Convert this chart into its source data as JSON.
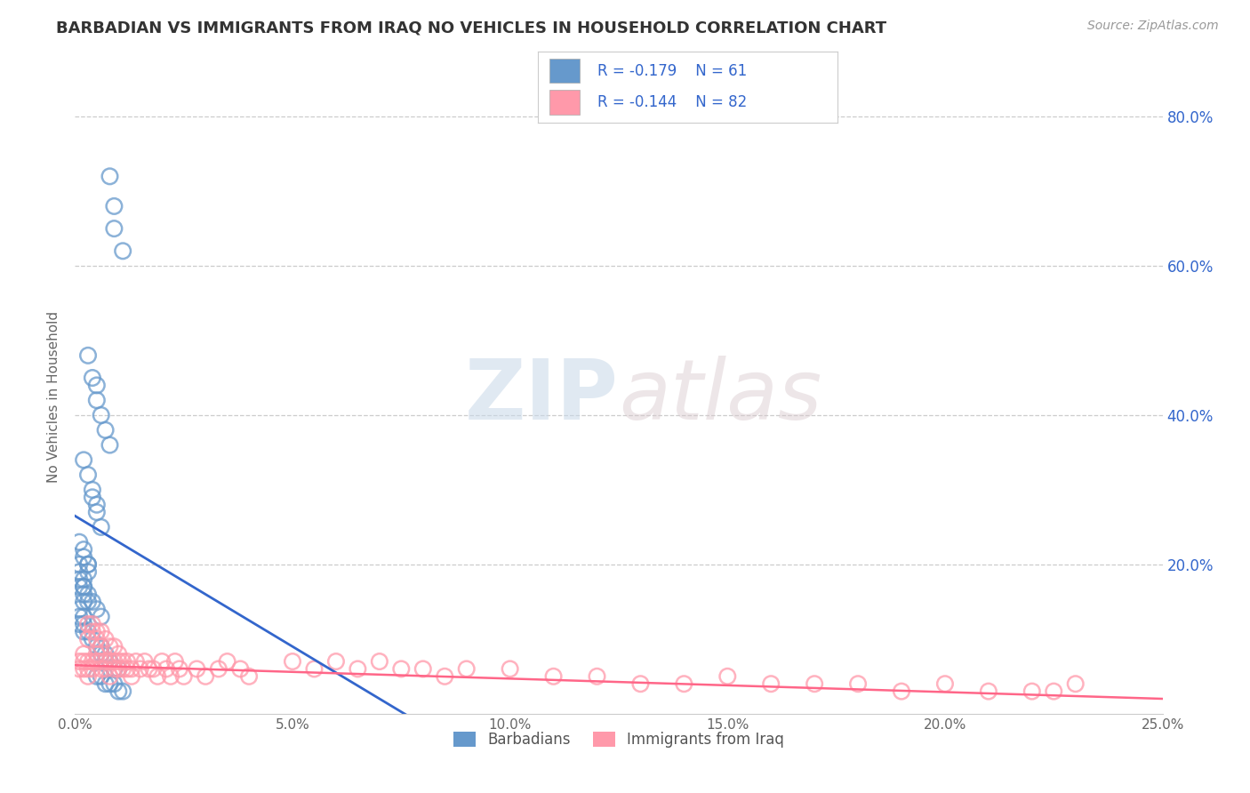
{
  "title": "BARBADIAN VS IMMIGRANTS FROM IRAQ NO VEHICLES IN HOUSEHOLD CORRELATION CHART",
  "source": "Source: ZipAtlas.com",
  "ylabel": "No Vehicles in Household",
  "xlim": [
    0.0,
    0.25
  ],
  "ylim": [
    0.0,
    0.85
  ],
  "xtick_values": [
    0.0,
    0.05,
    0.1,
    0.15,
    0.2,
    0.25
  ],
  "xtick_labels": [
    "0.0%",
    "5.0%",
    "10.0%",
    "15.0%",
    "20.0%",
    "25.0%"
  ],
  "ytick_values": [
    0.2,
    0.4,
    0.6,
    0.8
  ],
  "ytick_labels": [
    "20.0%",
    "40.0%",
    "60.0%",
    "80.0%"
  ],
  "legend_label1": "Barbadians",
  "legend_label2": "Immigrants from Iraq",
  "blue_color": "#6699CC",
  "pink_color": "#FF99AA",
  "blue_line_color": "#3366CC",
  "pink_line_color": "#FF6688",
  "title_color": "#333333",
  "source_color": "#999999",
  "legend_text_color": "#3366CC",
  "grid_color": "#CCCCCC",
  "background_color": "#FFFFFF",
  "watermark_zip": "ZIP",
  "watermark_atlas": "atlas",
  "blue_intercept": 0.265,
  "blue_slope": -3.5,
  "pink_intercept": 0.065,
  "pink_slope": -0.18,
  "barbadians_x": [
    0.008,
    0.009,
    0.009,
    0.011,
    0.003,
    0.004,
    0.005,
    0.005,
    0.006,
    0.007,
    0.008,
    0.002,
    0.003,
    0.004,
    0.004,
    0.005,
    0.005,
    0.006,
    0.001,
    0.002,
    0.002,
    0.003,
    0.003,
    0.003,
    0.001,
    0.001,
    0.002,
    0.002,
    0.002,
    0.003,
    0.001,
    0.001,
    0.001,
    0.002,
    0.002,
    0.002,
    0.003,
    0.004,
    0.005,
    0.006,
    0.006,
    0.007,
    0.007,
    0.008,
    0.009,
    0.01,
    0.001,
    0.001,
    0.002,
    0.002,
    0.003,
    0.004,
    0.005,
    0.006,
    0.005,
    0.006,
    0.007,
    0.008,
    0.009,
    0.01,
    0.011
  ],
  "barbadians_y": [
    0.72,
    0.68,
    0.65,
    0.62,
    0.48,
    0.45,
    0.44,
    0.42,
    0.4,
    0.38,
    0.36,
    0.34,
    0.32,
    0.3,
    0.29,
    0.28,
    0.27,
    0.25,
    0.23,
    0.22,
    0.21,
    0.2,
    0.19,
    0.2,
    0.18,
    0.17,
    0.17,
    0.16,
    0.15,
    0.15,
    0.14,
    0.13,
    0.12,
    0.13,
    0.12,
    0.11,
    0.11,
    0.1,
    0.09,
    0.09,
    0.08,
    0.07,
    0.08,
    0.07,
    0.06,
    0.06,
    0.2,
    0.19,
    0.18,
    0.17,
    0.16,
    0.15,
    0.14,
    0.13,
    0.05,
    0.05,
    0.04,
    0.04,
    0.04,
    0.03,
    0.03
  ],
  "iraq_x": [
    0.001,
    0.001,
    0.002,
    0.002,
    0.002,
    0.003,
    0.003,
    0.003,
    0.004,
    0.004,
    0.005,
    0.005,
    0.006,
    0.006,
    0.007,
    0.007,
    0.008,
    0.008,
    0.009,
    0.009,
    0.01,
    0.01,
    0.011,
    0.011,
    0.012,
    0.012,
    0.013,
    0.013,
    0.014,
    0.015,
    0.016,
    0.017,
    0.018,
    0.019,
    0.02,
    0.021,
    0.022,
    0.023,
    0.024,
    0.025,
    0.028,
    0.03,
    0.033,
    0.035,
    0.038,
    0.04,
    0.05,
    0.055,
    0.06,
    0.065,
    0.07,
    0.075,
    0.08,
    0.085,
    0.09,
    0.1,
    0.11,
    0.12,
    0.13,
    0.14,
    0.15,
    0.16,
    0.17,
    0.18,
    0.19,
    0.2,
    0.21,
    0.22,
    0.225,
    0.23,
    0.003,
    0.004,
    0.005,
    0.006,
    0.007,
    0.008,
    0.009,
    0.01,
    0.003,
    0.004,
    0.005,
    0.006
  ],
  "iraq_y": [
    0.06,
    0.07,
    0.07,
    0.08,
    0.06,
    0.07,
    0.06,
    0.05,
    0.07,
    0.06,
    0.08,
    0.07,
    0.07,
    0.06,
    0.07,
    0.06,
    0.07,
    0.05,
    0.07,
    0.06,
    0.07,
    0.06,
    0.07,
    0.06,
    0.07,
    0.06,
    0.06,
    0.05,
    0.07,
    0.06,
    0.07,
    0.06,
    0.06,
    0.05,
    0.07,
    0.06,
    0.05,
    0.07,
    0.06,
    0.05,
    0.06,
    0.05,
    0.06,
    0.07,
    0.06,
    0.05,
    0.07,
    0.06,
    0.07,
    0.06,
    0.07,
    0.06,
    0.06,
    0.05,
    0.06,
    0.06,
    0.05,
    0.05,
    0.04,
    0.04,
    0.05,
    0.04,
    0.04,
    0.04,
    0.03,
    0.04,
    0.03,
    0.03,
    0.03,
    0.04,
    0.1,
    0.11,
    0.1,
    0.09,
    0.1,
    0.09,
    0.09,
    0.08,
    0.12,
    0.12,
    0.11,
    0.11
  ]
}
